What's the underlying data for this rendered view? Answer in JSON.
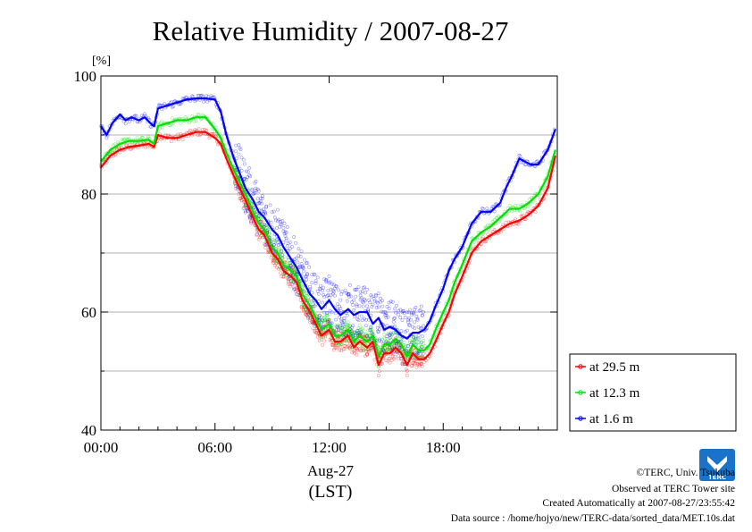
{
  "colors": {
    "red": "#ff0000",
    "green": "#00e000",
    "blue": "#0000ff",
    "grid": "#999999"
  },
  "chart_data": {
    "type": "line",
    "title": "Relative Humidity / 2007-08-27",
    "ylabel": "[%]",
    "xlabel": "Aug-27",
    "xlabel_sub": "(LST)",
    "ylim": [
      40,
      100
    ],
    "xlim": [
      0,
      24
    ],
    "y_ticks": [
      "40",
      "60",
      "80",
      "100"
    ],
    "y_tick_values": [
      40,
      60,
      80,
      100
    ],
    "x_ticks": [
      "00:00",
      "06:00",
      "12:00",
      "18:00"
    ],
    "x_tick_values": [
      0,
      6,
      12,
      18
    ],
    "grid": "horizontal",
    "legend_position": "right",
    "series": [
      {
        "name": "at 29.5 m",
        "color": "#ff0000",
        "x": [
          0,
          0.5,
          1,
          1.5,
          2,
          2.5,
          2.8,
          3,
          3.5,
          4,
          4.5,
          5,
          5.5,
          6,
          6.3,
          6.6,
          7,
          7.3,
          7.6,
          8,
          8.3,
          8.6,
          9,
          9.3,
          9.6,
          10,
          10.3,
          10.6,
          11,
          11.3,
          11.6,
          12,
          12.3,
          12.6,
          13,
          13.3,
          13.6,
          14,
          14.3,
          14.6,
          14.9,
          15.2,
          15.5,
          15.8,
          16.1,
          16.4,
          16.7,
          17,
          17.3,
          17.6,
          18,
          18.3,
          18.6,
          19,
          19.5,
          20,
          20.5,
          21,
          21.5,
          22,
          22.5,
          23,
          23.5,
          23.9
        ],
        "y": [
          84.5,
          86.5,
          87.5,
          88,
          88.2,
          88.5,
          88,
          90,
          89.5,
          89.5,
          90,
          90.5,
          90.5,
          89.5,
          88.5,
          86,
          83,
          81,
          79,
          76,
          74,
          73,
          70,
          69,
          67,
          66,
          65,
          62,
          60,
          58,
          56,
          57,
          55,
          55,
          56,
          54,
          55,
          54,
          55,
          51,
          53,
          53,
          54,
          53,
          51,
          53,
          52,
          52,
          53,
          55,
          58,
          60,
          63,
          66,
          70,
          72,
          73,
          74,
          75,
          75.5,
          76.5,
          78,
          81,
          86.5
        ]
      },
      {
        "name": "at 12.3 m",
        "color": "#00e000",
        "x": [
          0,
          0.5,
          1,
          1.5,
          2,
          2.5,
          2.8,
          3,
          3.5,
          4,
          4.5,
          5,
          5.5,
          6,
          6.3,
          6.6,
          7,
          7.3,
          7.6,
          8,
          8.3,
          8.6,
          9,
          9.3,
          9.6,
          10,
          10.3,
          10.6,
          11,
          11.3,
          11.6,
          12,
          12.3,
          12.6,
          13,
          13.3,
          13.6,
          14,
          14.3,
          14.6,
          14.9,
          15.2,
          15.5,
          15.8,
          16.1,
          16.4,
          16.7,
          17,
          17.3,
          17.6,
          18,
          18.3,
          18.6,
          19,
          19.5,
          20,
          20.5,
          21,
          21.5,
          22,
          22.5,
          23,
          23.5,
          23.9
        ],
        "y": [
          85.5,
          87.5,
          88.5,
          89,
          89,
          89.2,
          88.5,
          91.5,
          92,
          92.5,
          92.5,
          93,
          93,
          91,
          89.5,
          87,
          84,
          82,
          80,
          77,
          75,
          74,
          71,
          70,
          68,
          67,
          66,
          63,
          61,
          59,
          57,
          58,
          56,
          56,
          57,
          55,
          56,
          55,
          56,
          52.5,
          54.5,
          54.5,
          55.5,
          54.5,
          52.5,
          54.5,
          53.5,
          53.5,
          54.5,
          57,
          60,
          62,
          65,
          68,
          72,
          73.5,
          74.5,
          76,
          77.5,
          77.5,
          78.5,
          80,
          83,
          87.5
        ]
      },
      {
        "name": "at 1.6 m",
        "color": "#0000ff",
        "x": [
          0,
          0.3,
          0.6,
          1,
          1.3,
          1.6,
          2,
          2.3,
          2.6,
          2.8,
          3,
          3.5,
          4,
          4.5,
          5,
          5.5,
          6,
          6.3,
          6.6,
          7,
          7.3,
          7.6,
          8,
          8.3,
          8.6,
          9,
          9.3,
          9.6,
          10,
          10.3,
          10.6,
          11,
          11.3,
          11.6,
          12,
          12.3,
          12.6,
          13,
          13.3,
          13.6,
          14,
          14.3,
          14.6,
          14.9,
          15.2,
          15.5,
          15.8,
          16.1,
          16.4,
          16.7,
          17,
          17.3,
          17.6,
          18,
          18.3,
          18.6,
          19,
          19.5,
          20,
          20.5,
          21,
          21.3,
          21.6,
          22,
          22.3,
          22.6,
          23,
          23.5,
          23.9
        ],
        "y": [
          91.5,
          90,
          92,
          93.5,
          92.5,
          93,
          92.5,
          93,
          92,
          91.5,
          94.5,
          95,
          95.5,
          96,
          96.2,
          96.2,
          96,
          94,
          90,
          86,
          83.5,
          81,
          79,
          77,
          76,
          74,
          73,
          71,
          69,
          67.5,
          65.5,
          63,
          62,
          60.5,
          62,
          60.5,
          59.5,
          60.5,
          59.5,
          60,
          60,
          58,
          59,
          57,
          57.5,
          57,
          56,
          55.5,
          56.5,
          56.5,
          57,
          58.5,
          61,
          64,
          67,
          69,
          71,
          75,
          77,
          77,
          78.5,
          81,
          83,
          86,
          85.5,
          85,
          85,
          87.5,
          91
        ]
      }
    ]
  },
  "credits": {
    "copyright": "©TERC, Univ. Tsukuba",
    "observed": "Observed at TERC Tower site",
    "created": "Created Automatically at 2007-08-27/23:55:42",
    "source": "Data source : /home/hojyo/new/TERC-data/sorted_data/MET.10s.dat"
  },
  "logo": {
    "text": "TERC"
  }
}
